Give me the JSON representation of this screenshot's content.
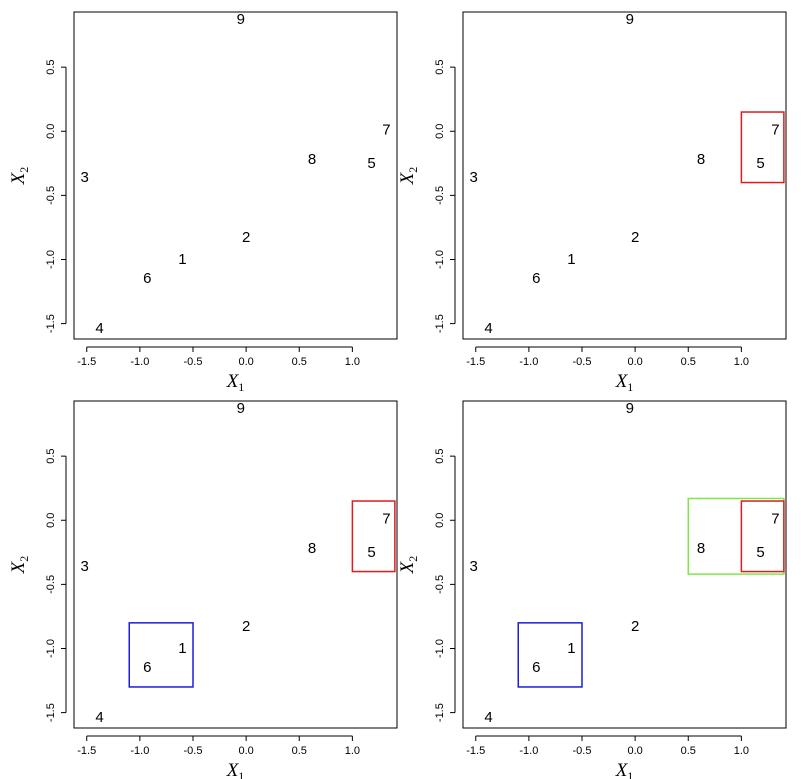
{
  "axes": {
    "xlabel_base": "X",
    "xlabel_sub": "1",
    "ylabel_base": "X",
    "ylabel_sub": "2",
    "xlim": [
      -1.62,
      1.42
    ],
    "ylim": [
      -1.62,
      0.93
    ],
    "x_ticks": [
      {
        "v": -1.5,
        "t": "-1.5"
      },
      {
        "v": -1.0,
        "t": "-1.0"
      },
      {
        "v": -0.5,
        "t": "-0.5"
      },
      {
        "v": 0.0,
        "t": "0.0"
      },
      {
        "v": 0.5,
        "t": "0.5"
      },
      {
        "v": 1.0,
        "t": "1.0"
      }
    ],
    "y_ticks": [
      {
        "v": -1.5,
        "t": "-1.5"
      },
      {
        "v": -1.0,
        "t": "-1.0"
      },
      {
        "v": -0.5,
        "t": "-0.5"
      },
      {
        "v": 0.0,
        "t": "0.0"
      },
      {
        "v": 0.5,
        "t": "0.5"
      }
    ]
  },
  "chart_data": [
    {
      "type": "scatter",
      "title": "",
      "points": [
        {
          "label": "1",
          "x": -0.6,
          "y": -1.0
        },
        {
          "label": "2",
          "x": 0.0,
          "y": -0.83
        },
        {
          "label": "3",
          "x": -1.52,
          "y": -0.36
        },
        {
          "label": "4",
          "x": -1.38,
          "y": -1.54
        },
        {
          "label": "5",
          "x": 1.18,
          "y": -0.25
        },
        {
          "label": "6",
          "x": -0.93,
          "y": -1.15
        },
        {
          "label": "7",
          "x": 1.32,
          "y": 0.01
        },
        {
          "label": "8",
          "x": 0.62,
          "y": -0.22
        },
        {
          "label": "9",
          "x": -0.05,
          "y": 0.87
        }
      ],
      "clusters": []
    },
    {
      "type": "scatter",
      "title": "",
      "points": [
        {
          "label": "1",
          "x": -0.6,
          "y": -1.0
        },
        {
          "label": "2",
          "x": 0.0,
          "y": -0.83
        },
        {
          "label": "3",
          "x": -1.52,
          "y": -0.36
        },
        {
          "label": "4",
          "x": -1.38,
          "y": -1.54
        },
        {
          "label": "5",
          "x": 1.18,
          "y": -0.25
        },
        {
          "label": "6",
          "x": -0.93,
          "y": -1.15
        },
        {
          "label": "7",
          "x": 1.32,
          "y": 0.01
        },
        {
          "label": "8",
          "x": 0.62,
          "y": -0.22
        },
        {
          "label": "9",
          "x": -0.05,
          "y": 0.87
        }
      ],
      "clusters": [
        {
          "members": [
            "5",
            "7"
          ],
          "color": "#dd1c1c",
          "x0": 1.0,
          "x1": 1.4,
          "y0": -0.4,
          "y1": 0.15
        }
      ]
    },
    {
      "type": "scatter",
      "title": "",
      "points": [
        {
          "label": "1",
          "x": -0.6,
          "y": -1.0
        },
        {
          "label": "2",
          "x": 0.0,
          "y": -0.83
        },
        {
          "label": "3",
          "x": -1.52,
          "y": -0.36
        },
        {
          "label": "4",
          "x": -1.38,
          "y": -1.54
        },
        {
          "label": "5",
          "x": 1.18,
          "y": -0.25
        },
        {
          "label": "6",
          "x": -0.93,
          "y": -1.15
        },
        {
          "label": "7",
          "x": 1.32,
          "y": 0.01
        },
        {
          "label": "8",
          "x": 0.62,
          "y": -0.22
        },
        {
          "label": "9",
          "x": -0.05,
          "y": 0.87
        }
      ],
      "clusters": [
        {
          "members": [
            "5",
            "7"
          ],
          "color": "#dd1c1c",
          "x0": 1.0,
          "x1": 1.4,
          "y0": -0.4,
          "y1": 0.15
        },
        {
          "members": [
            "1",
            "6"
          ],
          "color": "#1c1cdd",
          "x0": -1.1,
          "x1": -0.5,
          "y0": -1.3,
          "y1": -0.8
        }
      ]
    },
    {
      "type": "scatter",
      "title": "",
      "points": [
        {
          "label": "1",
          "x": -0.6,
          "y": -1.0
        },
        {
          "label": "2",
          "x": 0.0,
          "y": -0.83
        },
        {
          "label": "3",
          "x": -1.52,
          "y": -0.36
        },
        {
          "label": "4",
          "x": -1.38,
          "y": -1.54
        },
        {
          "label": "5",
          "x": 1.18,
          "y": -0.25
        },
        {
          "label": "6",
          "x": -0.93,
          "y": -1.15
        },
        {
          "label": "7",
          "x": 1.32,
          "y": 0.01
        },
        {
          "label": "8",
          "x": 0.62,
          "y": -0.22
        },
        {
          "label": "9",
          "x": -0.05,
          "y": 0.87
        }
      ],
      "clusters": [
        {
          "members": [
            "8",
            "5",
            "7"
          ],
          "color": "#7ee84a",
          "x0": 0.5,
          "x1": 1.4,
          "y0": -0.42,
          "y1": 0.17
        },
        {
          "members": [
            "5",
            "7"
          ],
          "color": "#dd1c1c",
          "x0": 1.0,
          "x1": 1.4,
          "y0": -0.4,
          "y1": 0.15
        },
        {
          "members": [
            "1",
            "6"
          ],
          "color": "#1c1cdd",
          "x0": -1.1,
          "x1": -0.5,
          "y0": -1.3,
          "y1": -0.8
        }
      ]
    }
  ]
}
